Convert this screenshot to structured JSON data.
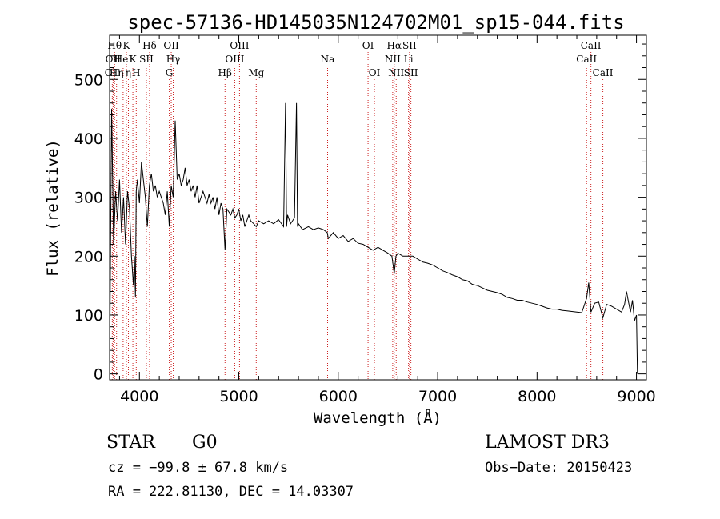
{
  "chart_data": {
    "type": "line",
    "title": "spec-57136-HD145035N124702M01_sp15-044.fits",
    "xlabel": "Wavelength (Å)",
    "ylabel": "Flux (relative)",
    "xlim": [
      3700,
      9100
    ],
    "ylim": [
      -10,
      575
    ],
    "xticks": [
      4000,
      5000,
      6000,
      7000,
      8000,
      9000
    ],
    "yticks": [
      0,
      100,
      200,
      300,
      400,
      500
    ],
    "grid": false,
    "series": [
      {
        "name": "spectrum",
        "x": [
          3700,
          3720,
          3740,
          3760,
          3780,
          3800,
          3820,
          3840,
          3860,
          3880,
          3900,
          3920,
          3940,
          3950,
          3960,
          3968,
          3980,
          4000,
          4020,
          4040,
          4060,
          4080,
          4100,
          4120,
          4140,
          4160,
          4180,
          4200,
          4220,
          4240,
          4260,
          4280,
          4300,
          4320,
          4340,
          4360,
          4380,
          4400,
          4420,
          4440,
          4460,
          4480,
          4500,
          4520,
          4540,
          4560,
          4580,
          4600,
          4620,
          4640,
          4660,
          4680,
          4700,
          4720,
          4740,
          4760,
          4780,
          4800,
          4820,
          4840,
          4861,
          4880,
          4900,
          4920,
          4940,
          4960,
          4980,
          5000,
          5020,
          5040,
          5060,
          5080,
          5100,
          5120,
          5150,
          5175,
          5200,
          5250,
          5300,
          5350,
          5400,
          5450,
          5470,
          5480,
          5490,
          5520,
          5560,
          5580,
          5590,
          5600,
          5640,
          5700,
          5750,
          5800,
          5850,
          5890,
          5900,
          5950,
          6000,
          6050,
          6100,
          6150,
          6200,
          6250,
          6300,
          6350,
          6400,
          6450,
          6500,
          6540,
          6563,
          6580,
          6600,
          6650,
          6700,
          6750,
          6800,
          6850,
          6900,
          6950,
          7000,
          7050,
          7100,
          7150,
          7200,
          7250,
          7300,
          7350,
          7400,
          7450,
          7500,
          7550,
          7600,
          7650,
          7700,
          7750,
          7800,
          7850,
          7900,
          7950,
          8000,
          8050,
          8100,
          8150,
          8200,
          8250,
          8300,
          8350,
          8400,
          8450,
          8498,
          8520,
          8542,
          8580,
          8620,
          8662,
          8700,
          8750,
          8800,
          8850,
          8880,
          8900,
          8940,
          8960,
          8980,
          9000,
          9010
        ],
        "y": [
          0,
          450,
          220,
          310,
          260,
          330,
          240,
          300,
          220,
          310,
          280,
          200,
          150,
          200,
          130,
          310,
          330,
          290,
          360,
          330,
          300,
          250,
          320,
          340,
          310,
          320,
          300,
          310,
          300,
          290,
          270,
          310,
          250,
          320,
          300,
          430,
          330,
          340,
          320,
          330,
          350,
          320,
          330,
          310,
          320,
          300,
          320,
          290,
          300,
          310,
          300,
          290,
          305,
          290,
          300,
          280,
          300,
          270,
          290,
          280,
          210,
          280,
          275,
          270,
          280,
          265,
          270,
          280,
          260,
          270,
          250,
          260,
          270,
          260,
          255,
          250,
          260,
          255,
          260,
          255,
          262,
          250,
          460,
          250,
          270,
          255,
          265,
          460,
          250,
          255,
          245,
          250,
          245,
          248,
          245,
          240,
          230,
          240,
          230,
          235,
          225,
          230,
          222,
          220,
          215,
          210,
          215,
          210,
          205,
          200,
          170,
          200,
          205,
          200,
          200,
          200,
          195,
          190,
          188,
          185,
          180,
          175,
          172,
          168,
          165,
          160,
          158,
          152,
          150,
          146,
          142,
          140,
          138,
          135,
          130,
          128,
          125,
          125,
          122,
          120,
          118,
          115,
          112,
          110,
          110,
          108,
          107,
          106,
          105,
          104,
          128,
          155,
          105,
          120,
          122,
          95,
          118,
          115,
          110,
          105,
          118,
          140,
          105,
          125,
          90,
          100,
          0
        ]
      }
    ],
    "spectral_lines": [
      {
        "lambda": 3727,
        "label": "OII",
        "row": 2
      },
      {
        "lambda": 3735,
        "label": "OII",
        "row": 1
      },
      {
        "lambda": 3750,
        "label": "Hθ",
        "row": 0
      },
      {
        "lambda": 3770,
        "label": "Hη",
        "row": 2
      },
      {
        "lambda": 3836,
        "label": "HeI",
        "row": 1
      },
      {
        "lambda": 3869,
        "label": "K",
        "row": 0
      },
      {
        "lambda": 3889,
        "label": "η",
        "row": 2
      },
      {
        "lambda": 3934,
        "label": "K",
        "row": 1
      },
      {
        "lambda": 3968,
        "label": "H",
        "row": 2
      },
      {
        "lambda": 4070,
        "label": "SII",
        "row": 1
      },
      {
        "lambda": 4102,
        "label": "Hδ",
        "row": 0
      },
      {
        "lambda": 4300,
        "label": "G",
        "row": 2
      },
      {
        "lambda": 4320,
        "label": "OII",
        "row": 0
      },
      {
        "lambda": 4340,
        "label": "Hγ",
        "row": 1
      },
      {
        "lambda": 4861,
        "label": "Hβ",
        "row": 2
      },
      {
        "lambda": 4959,
        "label": "OIII",
        "row": 1
      },
      {
        "lambda": 5007,
        "label": "OIII",
        "row": 0
      },
      {
        "lambda": 5175,
        "label": "Mg",
        "row": 2
      },
      {
        "lambda": 5893,
        "label": "Na",
        "row": 1
      },
      {
        "lambda": 6300,
        "label": "OI",
        "row": 0
      },
      {
        "lambda": 6364,
        "label": "OI",
        "row": 2
      },
      {
        "lambda": 6548,
        "label": "NII",
        "row": 1
      },
      {
        "lambda": 6563,
        "label": "Hα",
        "row": 0
      },
      {
        "lambda": 6583,
        "label": "NII",
        "row": 2
      },
      {
        "lambda": 6707,
        "label": "Li",
        "row": 1
      },
      {
        "lambda": 6717,
        "label": "SII",
        "row": 0
      },
      {
        "lambda": 6731,
        "label": "SII",
        "row": 2
      },
      {
        "lambda": 8498,
        "label": "CaII",
        "row": 1
      },
      {
        "lambda": 8542,
        "label": "CaII",
        "row": 0
      },
      {
        "lambda": 8662,
        "label": "CaII",
        "row": 2
      }
    ]
  },
  "info": {
    "class": "STAR",
    "subclass": "G0",
    "survey": "LAMOST DR3",
    "cz": "cz = −99.8 ± 67.8 km/s",
    "obs_date": "Obs−Date: 20150423",
    "coords": "RA = 222.81130, DEC =  14.03307"
  },
  "colors": {
    "spectrum": "#000000",
    "line_marker": "#cc2222",
    "axis": "#000000"
  }
}
